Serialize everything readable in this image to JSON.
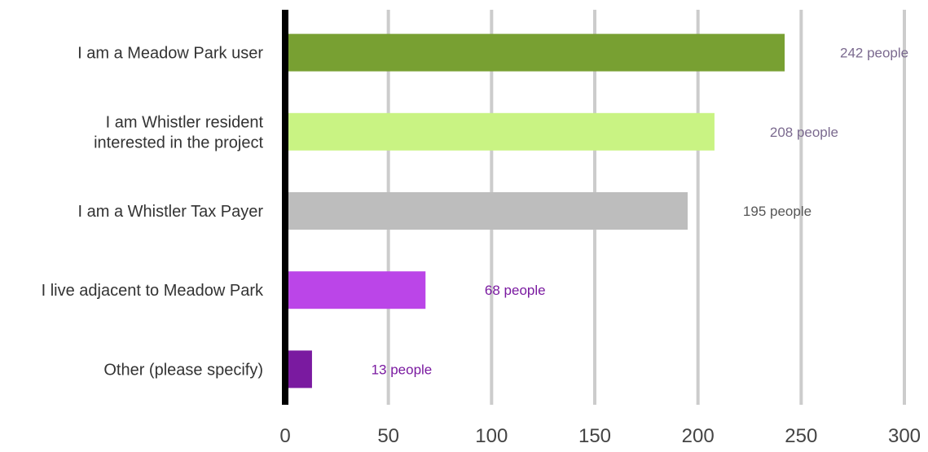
{
  "chart_data": {
    "type": "bar",
    "orientation": "horizontal",
    "title": "",
    "xlabel": "",
    "ylabel": "",
    "xlim": [
      0,
      300
    ],
    "grid": true,
    "legend": "none",
    "x_ticks": [
      "0",
      "50",
      "100",
      "150",
      "200",
      "250",
      "300"
    ],
    "categories": [
      [
        "I am a Meadow Park user"
      ],
      [
        "I am Whistler resident",
        "interested in the project"
      ],
      [
        "I am a Whistler Tax Payer"
      ],
      [
        "I live adjacent to Meadow Park"
      ],
      [
        "Other (please specify)"
      ]
    ],
    "values": [
      242,
      208,
      195,
      68,
      13
    ],
    "data_labels": [
      "242 people",
      "208 people",
      "195 people",
      "68 people",
      "13 people"
    ],
    "bar_colors": [
      "#78a032",
      "#c9f383",
      "#bdbdbd",
      "#bb45e8",
      "#7a1aa0"
    ],
    "label_colors": [
      "#7b6a8f",
      "#7b6a8f",
      "#555555",
      "#7a1aa0",
      "#7a1aa0"
    ]
  }
}
